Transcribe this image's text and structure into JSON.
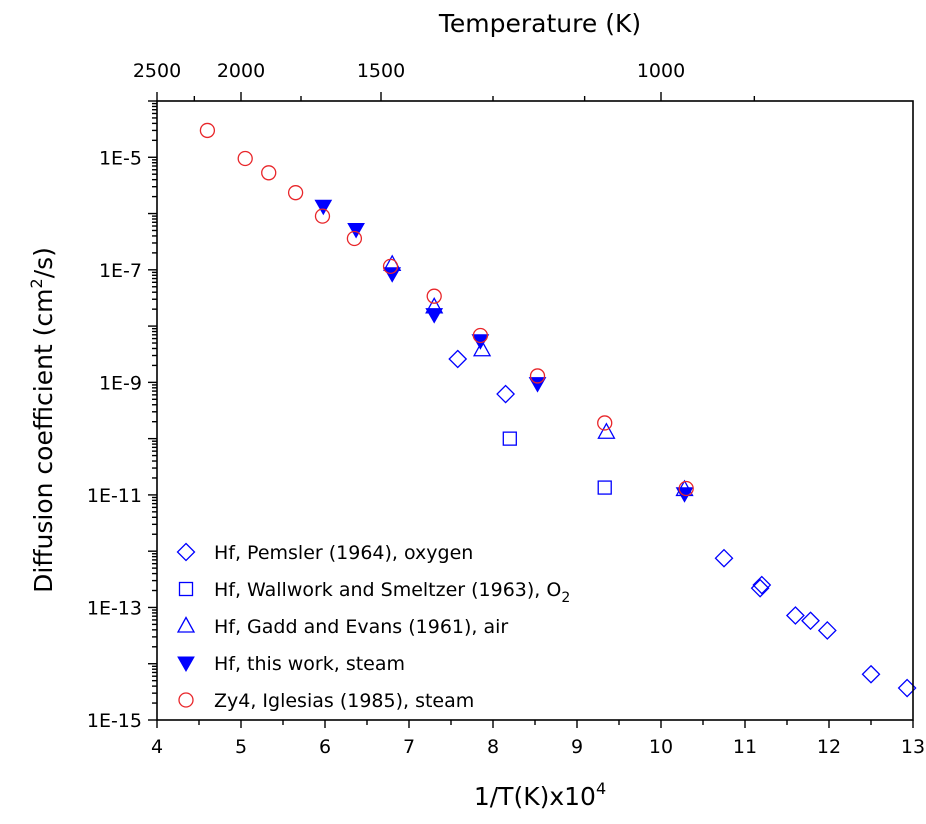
{
  "chart_data": {
    "type": "scatter",
    "title": "",
    "xlabel": "1/T(K)x10",
    "xlabel_sup": "4",
    "ylabel": "Diffusion coefficient (cm",
    "ylabel_sup": "2",
    "ylabel_end": "/s)",
    "top_label": "Temperature (K)",
    "xlim": [
      4,
      13
    ],
    "ylim_exp": [
      -15,
      -4
    ],
    "y_scale": "log",
    "x_ticks": [
      "4",
      "5",
      "6",
      "7",
      "8",
      "9",
      "10",
      "11",
      "12",
      "13"
    ],
    "y_ticks": [
      "1E-15",
      "1E-13",
      "1E-11",
      "1E-9",
      "1E-7",
      "1E-5"
    ],
    "top_ticks": [
      "2500",
      "2000",
      "1500",
      "1000"
    ],
    "legend_position": "bottom-left",
    "series": [
      {
        "name": "Hf, Pemsler (1964), oxygen",
        "marker": "diamond-open",
        "color": "#0000ff",
        "points": [
          [
            7.58,
            2.6e-09
          ],
          [
            8.15,
            6.2e-10
          ],
          [
            10.75,
            7.5e-13
          ],
          [
            11.2,
            2.5e-13
          ],
          [
            11.18,
            2.2e-13
          ],
          [
            11.6,
            7.2e-14
          ],
          [
            11.78,
            5.8e-14
          ],
          [
            11.98,
            3.9e-14
          ],
          [
            12.5,
            6.5e-15
          ],
          [
            12.93,
            3.7e-15
          ]
        ]
      },
      {
        "name": "Hf, Wallwork and Smeltzer (1963), O",
        "name_sub": "2",
        "marker": "square-open",
        "color": "#0000ff",
        "points": [
          [
            8.2,
            1e-10
          ],
          [
            9.33,
            1.35e-11
          ]
        ]
      },
      {
        "name": "Hf, Gadd and Evans (1961), air",
        "marker": "triangle-up-open",
        "color": "#0000ff",
        "points": [
          [
            6.8,
            1.25e-07
          ],
          [
            7.3,
            2.2e-08
          ],
          [
            7.87,
            3.8e-09
          ],
          [
            9.35,
            1.3e-10
          ],
          [
            10.28,
            1.25e-11
          ]
        ]
      },
      {
        "name": "Hf, this work, steam",
        "marker": "triangle-down-filled",
        "color": "#0000ff",
        "points": [
          [
            5.98,
            1.35e-06
          ],
          [
            6.37,
            5.2e-07
          ],
          [
            6.8,
            8.5e-08
          ],
          [
            7.3,
            1.6e-08
          ],
          [
            7.85,
            5.5e-09
          ],
          [
            8.53,
            9.5e-10
          ],
          [
            10.28,
            1.05e-11
          ]
        ]
      },
      {
        "name": "Zy4, Iglesias (1985), steam",
        "marker": "circle-open",
        "color": "#e8262a",
        "points": [
          [
            4.6,
            3e-05
          ],
          [
            5.05,
            9.5e-06
          ],
          [
            5.33,
            5.3e-06
          ],
          [
            5.65,
            2.35e-06
          ],
          [
            5.97,
            9e-07
          ],
          [
            6.35,
            3.6e-07
          ],
          [
            6.78,
            1.15e-07
          ],
          [
            7.3,
            3.4e-08
          ],
          [
            7.85,
            6.8e-09
          ],
          [
            8.53,
            1.3e-09
          ],
          [
            9.33,
            1.9e-10
          ],
          [
            10.3,
            1.3e-11
          ]
        ]
      }
    ]
  }
}
